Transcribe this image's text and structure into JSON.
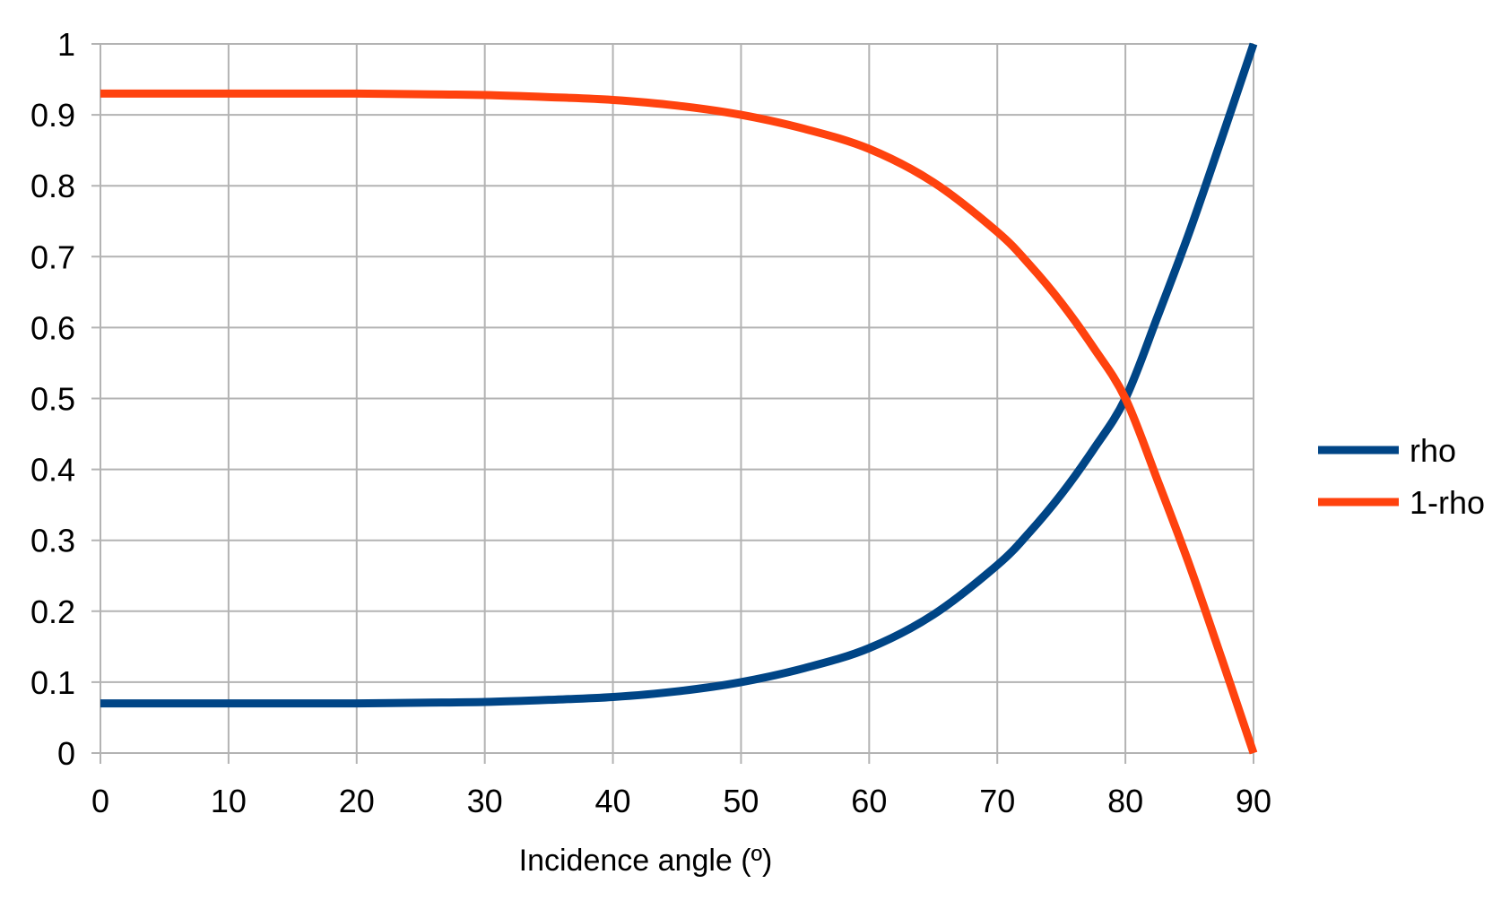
{
  "chart_data": {
    "type": "line",
    "title": "",
    "xlabel": "Incidence angle (º)",
    "ylabel": "",
    "xlim": [
      0,
      90
    ],
    "ylim": [
      0,
      1
    ],
    "x_ticks": [
      "0",
      "10",
      "20",
      "30",
      "40",
      "50",
      "60",
      "70",
      "80",
      "90"
    ],
    "y_ticks": [
      "0",
      "0.1",
      "0.2",
      "0.3",
      "0.4",
      "0.5",
      "0.6",
      "0.7",
      "0.8",
      "0.9",
      "1"
    ],
    "grid": true,
    "legend_position": "right",
    "x": [
      0,
      5,
      10,
      15,
      20,
      25,
      30,
      35,
      40,
      45,
      50,
      55,
      60,
      65,
      70,
      72.5,
      75,
      77.5,
      80,
      82.5,
      85,
      87.5,
      90
    ],
    "series": [
      {
        "name": "rho",
        "color": "#004586",
        "values": [
          0.07,
          0.07,
          0.07,
          0.07,
          0.07,
          0.071,
          0.072,
          0.075,
          0.079,
          0.087,
          0.1,
          0.12,
          0.148,
          0.195,
          0.265,
          0.311,
          0.365,
          0.428,
          0.5,
          0.615,
          0.735,
          0.866,
          1.0
        ]
      },
      {
        "name": "1-rho",
        "color": "#ff420e",
        "values": [
          0.93,
          0.93,
          0.93,
          0.93,
          0.93,
          0.929,
          0.928,
          0.925,
          0.921,
          0.913,
          0.9,
          0.88,
          0.852,
          0.805,
          0.735,
          0.689,
          0.635,
          0.572,
          0.5,
          0.385,
          0.265,
          0.134,
          0.0
        ]
      }
    ]
  }
}
